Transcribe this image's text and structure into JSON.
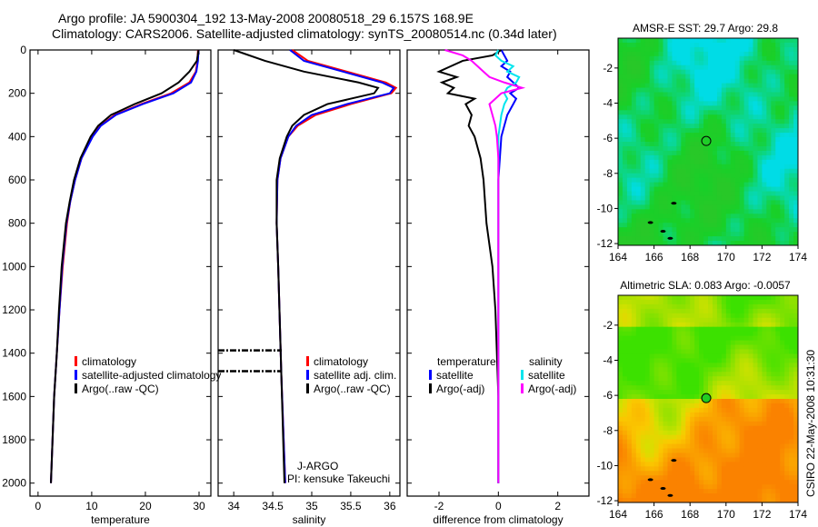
{
  "header": {
    "line1": "Argo profile: JA 5900304_192 13-May-2008 20080518_29 6.157S 168.9E",
    "line2": "Climatology: CARS2006. Satellite-adjusted climatology: synTS_20080514.nc (0.34d later)"
  },
  "side_label": "CSIRO 22-May-2008 10:31:30",
  "colors": {
    "climatology": "#ff0000",
    "satellite": "#0000ff",
    "argo": "#000000",
    "sal_satellite": "#00e5ee",
    "sal_argo": "#ff00ff"
  },
  "chart_data": [
    {
      "type": "line",
      "name": "temperature-panel",
      "xlabel": "temperature",
      "xlim": [
        -1.5,
        32.2
      ],
      "ylim": [
        0,
        2060
      ],
      "xticks": [
        0,
        10,
        20,
        30
      ],
      "yticks": [
        0,
        200,
        400,
        600,
        800,
        1000,
        1200,
        1400,
        1600,
        1800,
        2000
      ],
      "depth": [
        0,
        50,
        100,
        150,
        200,
        250,
        300,
        350,
        400,
        500,
        600,
        700,
        800,
        1000,
        1200,
        1400,
        1600,
        1800,
        2000
      ],
      "series": [
        {
          "name": "climatology",
          "color": "#ff0000",
          "values": [
            29.8,
            29.7,
            29.4,
            28.2,
            24.8,
            19.2,
            14.3,
            11.6,
            10.1,
            8.1,
            6.9,
            6.0,
            5.4,
            4.6,
            4.0,
            3.5,
            3.0,
            2.7,
            2.4
          ]
        },
        {
          "name": "satellite-adjusted climatology",
          "color": "#0000ff",
          "values": [
            29.9,
            29.8,
            29.5,
            28.5,
            25.2,
            19.5,
            14.5,
            11.7,
            10.2,
            8.1,
            6.9,
            6.0,
            5.3,
            4.5,
            4.0,
            3.5,
            3.0,
            2.7,
            2.4
          ]
        },
        {
          "name": "Argo(..raw -QC)",
          "color": "#000000",
          "values": [
            29.9,
            29.6,
            28.2,
            26.2,
            23.0,
            18.0,
            13.6,
            11.2,
            9.8,
            7.9,
            6.7,
            5.9,
            5.2,
            4.4,
            3.9,
            3.5,
            3.0,
            2.7,
            2.4
          ]
        }
      ],
      "legend": [
        "climatology",
        "satellite-adjusted climatology",
        "Argo(..raw -QC)"
      ]
    },
    {
      "type": "line",
      "name": "salinity-panel",
      "xlabel": "salinity",
      "xlim": [
        33.8,
        36.13
      ],
      "ylim": [
        0,
        2060
      ],
      "xticks": [
        34,
        34.5,
        35,
        35.5,
        36
      ],
      "depth": [
        0,
        50,
        100,
        150,
        175,
        200,
        250,
        300,
        350,
        400,
        500,
        600,
        800,
        1000,
        1500,
        2000
      ],
      "series": [
        {
          "name": "climatology",
          "color": "#ff0000",
          "values": [
            34.75,
            34.95,
            35.45,
            35.95,
            36.08,
            36.02,
            35.5,
            35.05,
            34.82,
            34.7,
            34.6,
            34.56,
            34.55,
            34.57,
            34.61,
            34.66
          ]
        },
        {
          "name": "satellite adj. clim.",
          "color": "#0000ff",
          "values": [
            34.72,
            34.9,
            35.4,
            35.9,
            36.05,
            36.0,
            35.45,
            35.0,
            34.8,
            34.7,
            34.6,
            34.56,
            34.55,
            34.57,
            34.61,
            34.66
          ]
        },
        {
          "name": "Argo(..raw -QC)",
          "color": "#000000",
          "values": [
            34.0,
            34.4,
            34.9,
            35.6,
            35.85,
            35.8,
            35.2,
            34.9,
            34.75,
            34.68,
            34.59,
            34.55,
            34.55,
            34.57,
            34.61,
            34.65
          ]
        }
      ],
      "flagged_depths": [
        1387,
        1483
      ],
      "legend": [
        "climatology",
        "satellite adj. clim.",
        "Argo(..raw -QC)"
      ],
      "annotation": [
        "J-ARGO",
        "PI: kensuke Takeuchi"
      ]
    },
    {
      "type": "line",
      "name": "difference-panel",
      "xlabel": "difference from climatology",
      "xlim": [
        -3.07,
        3.05
      ],
      "ylim": [
        0,
        2060
      ],
      "xticks": [
        -2,
        0,
        2
      ],
      "depth": [
        0,
        25,
        50,
        75,
        100,
        125,
        150,
        175,
        200,
        225,
        250,
        300,
        350,
        400,
        500,
        600,
        800,
        1000,
        1200,
        1400,
        1600,
        2000
      ],
      "series": [
        {
          "name": "temperature satellite",
          "color": "#0000ff",
          "values": [
            0.1,
            0.2,
            0.3,
            0.1,
            0.4,
            0.3,
            0.5,
            0.7,
            0.4,
            0.6,
            0.5,
            0.3,
            0.2,
            0.1,
            0.05,
            0.0,
            0.0,
            0.0,
            0.0,
            0.0,
            0.0,
            0.0
          ]
        },
        {
          "name": "temperature Argo(-adj)",
          "color": "#000000",
          "values": [
            0.1,
            -0.2,
            -1.2,
            -1.6,
            -2.0,
            -1.4,
            -1.9,
            -1.5,
            -1.7,
            -0.8,
            -1.1,
            -0.9,
            -1.0,
            -0.8,
            -0.6,
            -0.5,
            -0.4,
            -0.2,
            -0.1,
            -0.05,
            0.0,
            0.0
          ]
        },
        {
          "name": "salinity satellite",
          "color": "#00e5ee",
          "values": [
            0.0,
            -0.1,
            0.1,
            0.5,
            0.3,
            0.7,
            0.6,
            0.3,
            0.2,
            0.3,
            0.2,
            0.1,
            0.05,
            0.0,
            0.0,
            0.0,
            0.0,
            0.0,
            0.0,
            0.0,
            0.0,
            0.0
          ]
        },
        {
          "name": "salinity Argo(-adj)",
          "color": "#ff00ff",
          "values": [
            -1.8,
            -1.2,
            -0.9,
            -0.7,
            -0.5,
            -0.3,
            0.2,
            0.8,
            0.1,
            -0.1,
            -0.3,
            -0.2,
            -0.1,
            -0.05,
            0.0,
            0.0,
            0.0,
            0.0,
            0.0,
            0.0,
            0.0,
            0.0
          ]
        }
      ],
      "legend": {
        "temperature": [
          "satellite",
          "Argo(-adj)"
        ],
        "salinity": [
          "satellite",
          "Argo(-adj)"
        ],
        "headers": [
          "temperature",
          "salinity"
        ]
      }
    },
    {
      "type": "heatmap",
      "name": "sst-map",
      "title": "AMSR-E SST: 29.7 Argo: 29.8",
      "xlim": [
        164,
        174
      ],
      "ylim": [
        -12.1,
        -0.3
      ],
      "xticks": [
        164,
        166,
        168,
        170,
        172,
        174
      ],
      "yticks": [
        -2,
        -4,
        -6,
        -8,
        -10,
        -12
      ],
      "argo_position": [
        168.9,
        -6.157
      ]
    },
    {
      "type": "heatmap",
      "name": "sla-map",
      "title": "Altimetric SLA: 0.083 Argo: -0.0057",
      "xlim": [
        164,
        174
      ],
      "ylim": [
        -12.1,
        -0.3
      ],
      "xticks": [
        164,
        166,
        168,
        170,
        172,
        174
      ],
      "yticks": [
        -2,
        -4,
        -6,
        -8,
        -10,
        -12
      ],
      "argo_position": [
        168.9,
        -6.157
      ]
    }
  ]
}
